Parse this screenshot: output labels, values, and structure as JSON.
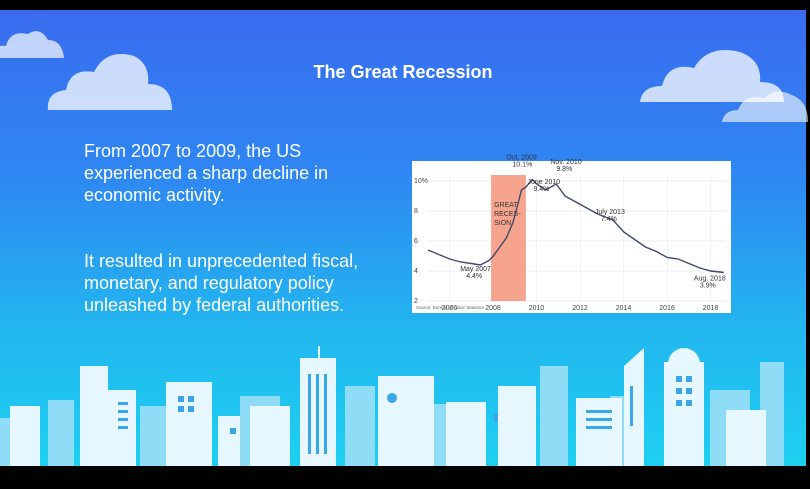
{
  "slide": {
    "title": "The Great Recession",
    "paragraph1": "From 2007 to 2009, the US experienced a sharp decline in economic activity.",
    "paragraph2": "It resulted in unprecedented fiscal, monetary, and regulatory policy unleashed by federal authorities."
  },
  "colors": {
    "sky_top": "#3a6cf0",
    "sky_bottom": "#1ed0f0",
    "building_light": "#e8f7ff",
    "building_mid": "#9adff8",
    "recession_band": "#f6a48e",
    "line": "#3e4a6b"
  },
  "chart_data": {
    "type": "line",
    "y_ticks": [
      "10%",
      "8",
      "6",
      "4",
      "2"
    ],
    "x_ticks": [
      "2006",
      "2008",
      "2010",
      "2012",
      "2014",
      "2016",
      "2018"
    ],
    "ylim": [
      2,
      10.4
    ],
    "xlim": [
      2005.0,
      2018.7
    ],
    "recession_label": "GREAT RECES- SION",
    "recession_range": [
      2007.9,
      2009.5
    ],
    "annotations": [
      {
        "line1": "May 2007",
        "line2": "4.4%"
      },
      {
        "line1": "Oct. 2009",
        "line2": "10.1%"
      },
      {
        "line1": "Nov. 2010",
        "line2": "9.8%"
      },
      {
        "line1": "June 2010",
        "line2": "9.4%"
      },
      {
        "line1": "July 2013",
        "line2": "7.4%"
      },
      {
        "line1": "Aug. 2018",
        "line2": "3.9%"
      }
    ],
    "source": "Source: Bureau of Labor Statistics",
    "series": [
      {
        "x": [
          2005.0,
          2005.5,
          2006.0,
          2006.5,
          2007.0,
          2007.4,
          2007.8,
          2008.0,
          2008.3,
          2008.6,
          2008.9,
          2009.1,
          2009.3,
          2009.5,
          2009.8,
          2010.0,
          2010.4,
          2010.9,
          2011.3,
          2011.8,
          2012.3,
          2012.8,
          2013.5,
          2014.0,
          2014.5,
          2015.0,
          2015.5,
          2016.0,
          2016.5,
          2017.0,
          2017.5,
          2018.0,
          2018.6
        ],
        "y": [
          5.4,
          5.1,
          4.8,
          4.6,
          4.5,
          4.4,
          4.7,
          5.0,
          5.6,
          6.2,
          7.2,
          8.3,
          9.4,
          9.6,
          10.1,
          9.8,
          9.4,
          9.8,
          9.0,
          8.6,
          8.2,
          7.8,
          7.4,
          6.6,
          6.1,
          5.6,
          5.3,
          4.9,
          4.8,
          4.5,
          4.2,
          4.0,
          3.9
        ]
      }
    ]
  }
}
